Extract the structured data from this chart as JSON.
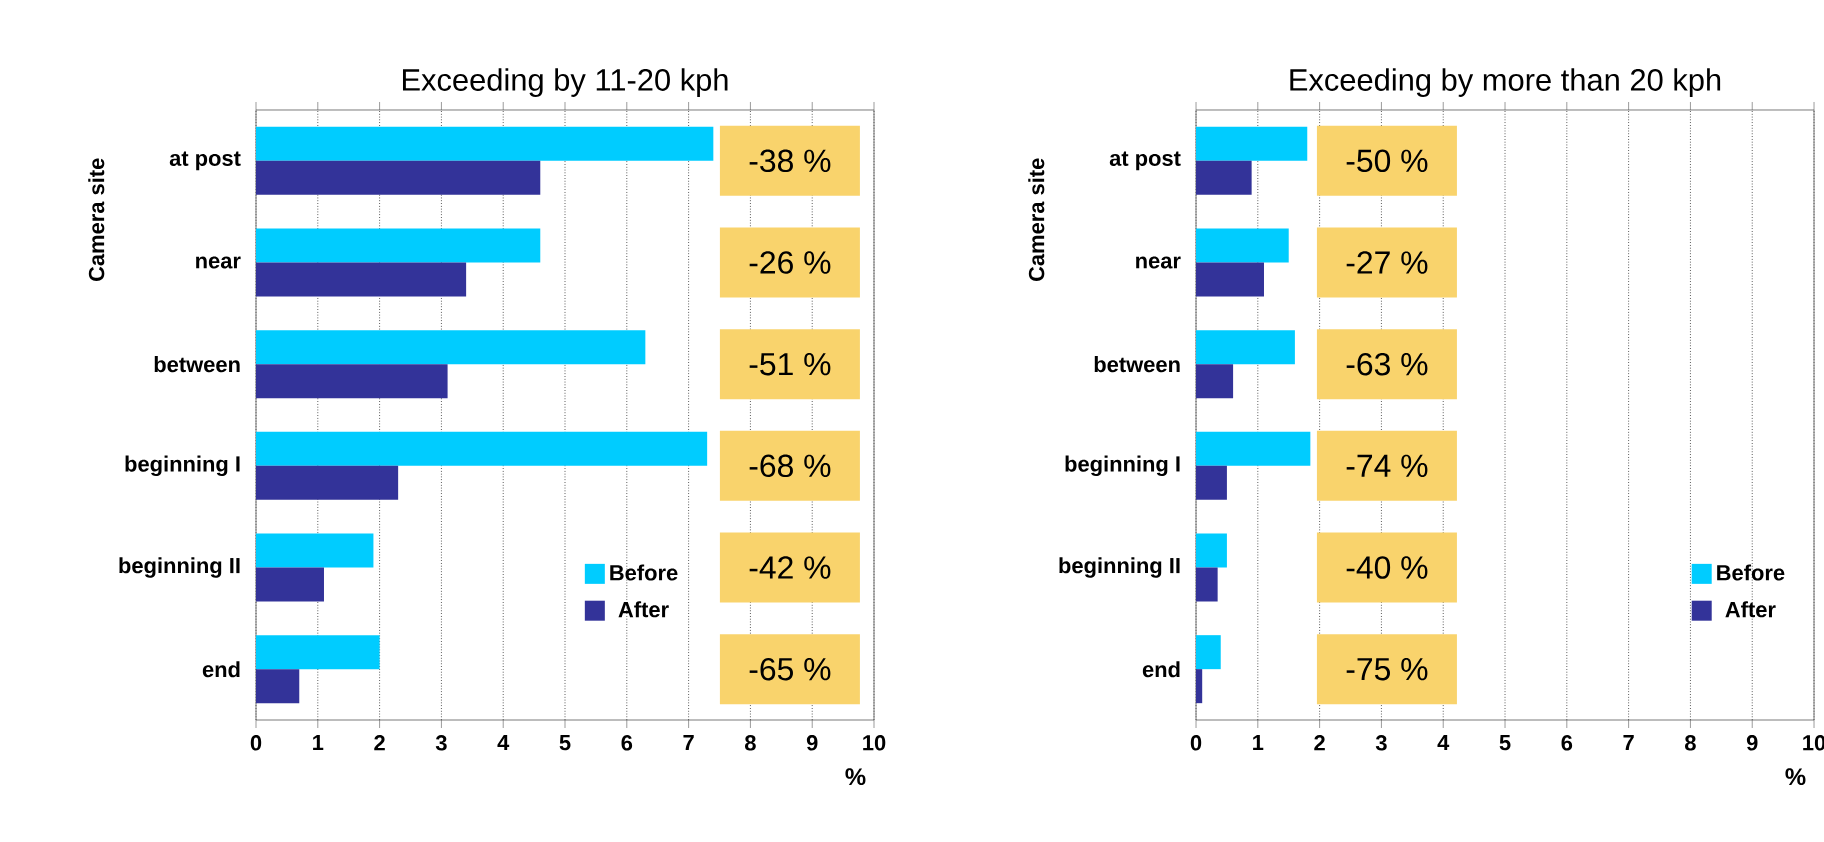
{
  "chart_data": [
    {
      "type": "bar",
      "orientation": "horizontal",
      "title": "Exceeding by 11-20 kph",
      "ylabel": "Camera site",
      "xlabel": "%",
      "categories": [
        "at post",
        "near",
        "between",
        "beginning I",
        "beginning II",
        "end"
      ],
      "series": [
        {
          "name": "Before",
          "color": "#00ccff",
          "values": [
            7.4,
            4.6,
            6.3,
            7.3,
            1.9,
            2.0
          ]
        },
        {
          "name": "After",
          "color": "#333399",
          "values": [
            4.6,
            3.4,
            3.1,
            2.3,
            1.1,
            0.7
          ]
        }
      ],
      "xlim": [
        0,
        10
      ],
      "xticks": [
        0,
        1,
        2,
        3,
        4,
        5,
        6,
        7,
        8,
        9,
        10
      ],
      "grid": "x",
      "legend": "bottom right",
      "annotations": [
        "-38 %",
        "-26 %",
        "-51 %",
        "-68 %",
        "-42 %",
        "-65 %"
      ]
    },
    {
      "type": "bar",
      "orientation": "horizontal",
      "title": "Exceeding by more than 20 kph",
      "ylabel": "Camera site",
      "xlabel": "%",
      "categories": [
        "at post",
        "near",
        "between",
        "beginning I",
        "beginning II",
        "end"
      ],
      "series": [
        {
          "name": "Before",
          "color": "#00ccff",
          "values": [
            1.8,
            1.5,
            1.6,
            1.85,
            0.5,
            0.4
          ]
        },
        {
          "name": "After",
          "color": "#333399",
          "values": [
            0.9,
            1.1,
            0.6,
            0.5,
            0.35,
            0.1
          ]
        }
      ],
      "xlim": [
        0,
        10
      ],
      "xticks": [
        0,
        1,
        2,
        3,
        4,
        5,
        6,
        7,
        8,
        9,
        10
      ],
      "grid": "x",
      "legend": "bottom right",
      "annotations": [
        "-50 %",
        "-27 %",
        "-63 %",
        "-74 %",
        "-40 %",
        "-75 %"
      ]
    }
  ]
}
